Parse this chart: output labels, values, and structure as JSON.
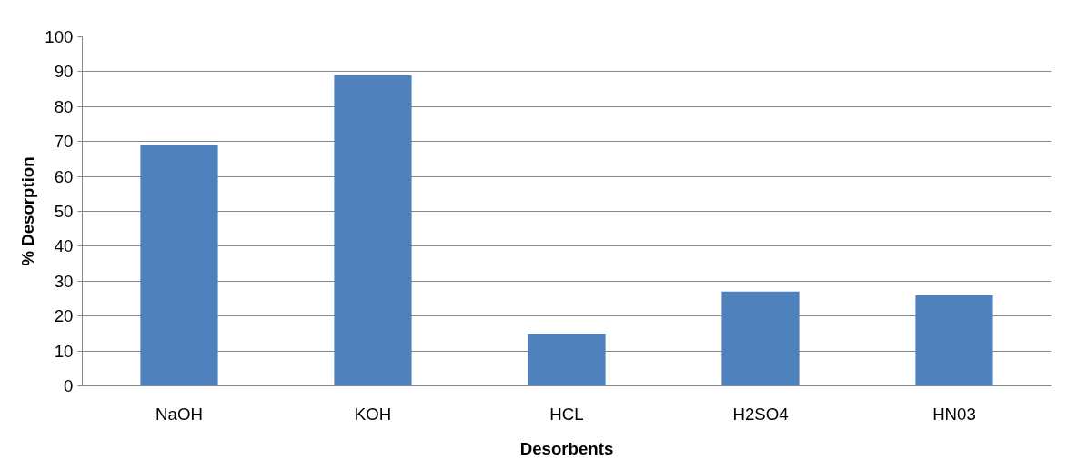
{
  "chart_data": {
    "type": "bar",
    "xlabel": "Desorbents",
    "ylabel": "% Desorption",
    "categories": [
      "NaOH",
      "KOH",
      "HCL",
      "H2SO4",
      "HN03"
    ],
    "values": [
      69,
      89,
      15,
      27,
      26
    ],
    "color": "#4f81bd",
    "ylim": [
      0,
      100
    ],
    "yticks": [
      0,
      10,
      20,
      30,
      40,
      50,
      60,
      70,
      80,
      90,
      100
    ],
    "grid": "y"
  }
}
